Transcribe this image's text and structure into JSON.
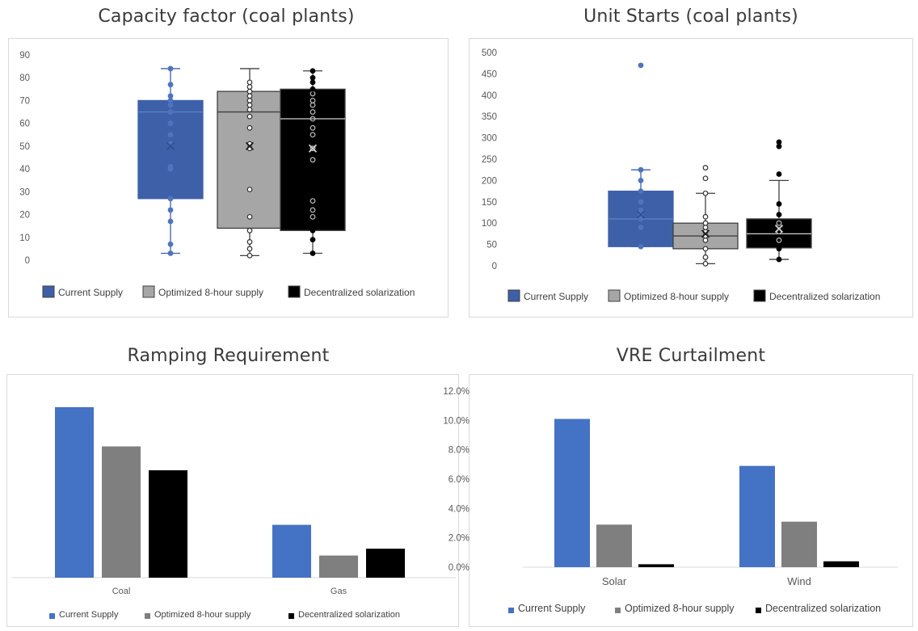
{
  "colors": {
    "current": "#3e60a8",
    "optimized": "#a6a6a6",
    "decentralized": "#000000",
    "current_bar": "#4472c4",
    "optimized_bar": "#7f7f7f",
    "decentralized_bar": "#000000"
  },
  "chart_data": [
    {
      "type": "box",
      "title": "Capacity factor (coal plants)",
      "ylim": [
        0,
        90
      ],
      "yticks": [
        0,
        10,
        20,
        30,
        40,
        50,
        60,
        70,
        80,
        90
      ],
      "grid": false,
      "legend_position": "bottom",
      "series": [
        {
          "name": "Current Supply",
          "min": 3,
          "q1": 27,
          "median": 65,
          "q3": 70,
          "max": 84,
          "mean": 50,
          "points": [
            3,
            7,
            17,
            22,
            27,
            40,
            41,
            51,
            55,
            60,
            65,
            68,
            70,
            72,
            77,
            84
          ]
        },
        {
          "name": "Optimized 8-hour supply",
          "min": 2,
          "q1": 14,
          "median": 65,
          "q3": 74,
          "max": 84,
          "mean": 50,
          "points": [
            2,
            5,
            8,
            13,
            19,
            31,
            49,
            51,
            58,
            63,
            66,
            68,
            70,
            72,
            74,
            76,
            78
          ]
        },
        {
          "name": "Decentralized solarization",
          "min": 3,
          "q1": 13,
          "median": 62,
          "q3": 75,
          "max": 83,
          "mean": 49,
          "points": [
            3,
            9,
            13,
            19,
            22,
            26,
            44,
            49,
            55,
            58,
            62,
            65,
            68,
            70,
            73,
            75,
            78,
            80,
            83
          ]
        }
      ]
    },
    {
      "type": "box",
      "title": "Unit Starts (coal plants)",
      "ylim": [
        0,
        500
      ],
      "yticks": [
        0,
        50,
        100,
        150,
        200,
        250,
        300,
        350,
        400,
        450,
        500
      ],
      "grid": false,
      "legend_position": "bottom",
      "series": [
        {
          "name": "Current Supply",
          "min": 45,
          "q1": 45,
          "median": 110,
          "q3": 175,
          "max": 225,
          "mean": 120,
          "points": [
            45,
            90,
            110,
            120,
            130,
            150,
            175,
            200,
            225,
            470
          ]
        },
        {
          "name": "Optimized 8-hour supply",
          "min": 5,
          "q1": 40,
          "median": 70,
          "q3": 100,
          "max": 170,
          "mean": 75,
          "points": [
            5,
            20,
            40,
            60,
            70,
            80,
            90,
            100,
            115,
            170,
            205,
            230
          ]
        },
        {
          "name": "Decentralized solarization",
          "min": 15,
          "q1": 42,
          "median": 75,
          "q3": 110,
          "max": 200,
          "mean": 87,
          "points": [
            15,
            40,
            60,
            80,
            100,
            120,
            145,
            215,
            280,
            290
          ]
        }
      ]
    },
    {
      "type": "bar",
      "title": "Ramping Requirement",
      "categories": [
        "Coal",
        "Gas"
      ],
      "ylim": [
        0,
        100
      ],
      "grid": false,
      "legend_position": "bottom",
      "series": [
        {
          "name": "Current Supply",
          "values": [
            100,
            31
          ]
        },
        {
          "name": "Optimized 8-hour supply",
          "values": [
            77,
            13
          ]
        },
        {
          "name": "Decentralized solarization",
          "values": [
            63,
            17
          ]
        }
      ]
    },
    {
      "type": "bar",
      "title": "VRE Curtailment",
      "categories": [
        "Solar",
        "Wind"
      ],
      "ylim": [
        0,
        12
      ],
      "yticks": [
        "0.0%",
        "2.0%",
        "4.0%",
        "6.0%",
        "8.0%",
        "10.0%",
        "12.0%"
      ],
      "grid": false,
      "legend_position": "bottom",
      "series": [
        {
          "name": "Current Supply",
          "values": [
            10.1,
            6.9
          ]
        },
        {
          "name": "Optimized 8-hour supply",
          "values": [
            2.9,
            3.1
          ]
        },
        {
          "name": "Decentralized solarization",
          "values": [
            0.2,
            0.4
          ]
        }
      ]
    }
  ]
}
